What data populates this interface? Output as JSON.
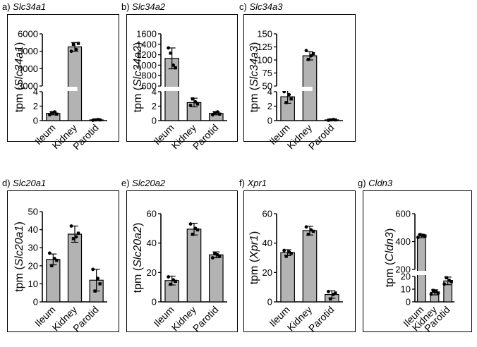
{
  "chart_data": [
    {
      "type": "bar",
      "panel_letter": "a)",
      "title": "Slc34a1",
      "ylabel_prefix": "tpm (",
      "ylabel_gene": "Slc34a1",
      "ylabel_suffix": ")",
      "categories": [
        "Ileum",
        "Kidney",
        "Parotid"
      ],
      "broken_axis": true,
      "lower": {
        "ylim": [
          0,
          4
        ],
        "ticks": [
          0,
          2,
          4
        ]
      },
      "upper": {
        "ylim": [
          3000,
          6000
        ],
        "ticks": [
          3000,
          4000,
          5000,
          6000
        ]
      },
      "values": [
        1.0,
        5250,
        0.1
      ],
      "errors": [
        0.2,
        250,
        0.05
      ],
      "points": [
        [
          0.8,
          1.1,
          1.2,
          0.9
        ],
        [
          5000,
          5400,
          5100,
          5450
        ],
        [
          0.05,
          0.1,
          0.15,
          0.1
        ]
      ]
    },
    {
      "type": "bar",
      "panel_letter": "b)",
      "title": "Slc34a2",
      "ylabel_prefix": "tpm (",
      "ylabel_gene": "Slc34a2",
      "ylabel_suffix": ")",
      "categories": [
        "Ileum",
        "Kidney",
        "Parotid"
      ],
      "broken_axis": true,
      "lower": {
        "ylim": [
          0,
          4
        ],
        "ticks": [
          0,
          2,
          4
        ]
      },
      "upper": {
        "ylim": [
          600,
          1600
        ],
        "ticks": [
          600,
          800,
          1000,
          1200,
          1400,
          1600
        ]
      },
      "values": [
        1130,
        2.5,
        1.0
      ],
      "errors": [
        200,
        0.6,
        0.2
      ],
      "points": [
        [
          1330,
          1230,
          1000,
          950
        ],
        [
          2.1,
          3.0,
          2.6,
          2.3
        ],
        [
          0.8,
          1.1,
          1.2,
          0.9
        ]
      ]
    },
    {
      "type": "bar",
      "panel_letter": "c)",
      "title": "Slc34a3",
      "ylabel_prefix": "tpm (",
      "ylabel_gene": "Slc34a3",
      "ylabel_suffix": ")",
      "categories": [
        "Ileum",
        "Kidney",
        "Parotid"
      ],
      "broken_axis": true,
      "lower": {
        "ylim": [
          0,
          4
        ],
        "ticks": [
          0,
          2,
          4
        ]
      },
      "upper": {
        "ylim": [
          50,
          150
        ],
        "ticks": [
          50,
          75,
          100,
          125,
          150
        ]
      },
      "values": [
        3.3,
        108,
        0.1
      ],
      "errors": [
        0.9,
        8,
        0.05
      ],
      "points": [
        [
          4.0,
          2.5,
          3.6,
          3.0
        ],
        [
          118,
          101,
          108,
          112
        ],
        [
          0.05,
          0.1,
          0.15,
          0.1
        ]
      ]
    },
    {
      "type": "bar",
      "panel_letter": "d)",
      "title": "Slc20a1",
      "ylabel_prefix": "tpm (",
      "ylabel_gene": "Slc20a1",
      "ylabel_suffix": ")",
      "categories": [
        "Ileum",
        "Kidney",
        "Parotid"
      ],
      "broken_axis": false,
      "ylim": [
        0,
        50
      ],
      "ticks": [
        0,
        10,
        20,
        30,
        40,
        50
      ],
      "values": [
        23.5,
        37.5,
        12.0
      ],
      "errors": [
        3,
        4.5,
        6
      ],
      "points": [
        [
          27,
          20,
          24,
          23
        ],
        [
          42,
          35,
          36,
          38
        ],
        [
          18,
          6,
          13,
          10
        ]
      ]
    },
    {
      "type": "bar",
      "panel_letter": "e)",
      "title": "Slc20a2",
      "ylabel_prefix": "tpm (",
      "ylabel_gene": "Slc20a2",
      "ylabel_suffix": ")",
      "categories": [
        "Ileum",
        "Kidney",
        "Parotid"
      ],
      "broken_axis": false,
      "ylim": [
        0,
        60
      ],
      "ticks": [
        0,
        20,
        40,
        60
      ],
      "values": [
        14.5,
        49.5,
        32.0
      ],
      "errors": [
        3,
        4,
        2
      ],
      "points": [
        [
          17,
          12,
          15,
          14
        ],
        [
          53,
          46,
          50,
          49
        ],
        [
          30,
          33,
          32,
          31
        ]
      ]
    },
    {
      "type": "bar",
      "panel_letter": "f)",
      "title": "Xpr1",
      "ylabel_prefix": "tpm (",
      "ylabel_gene": "Xpr1",
      "ylabel_suffix": ")",
      "categories": [
        "Ileum",
        "Kidney",
        "Parotid"
      ],
      "broken_axis": false,
      "ylim": [
        0,
        60
      ],
      "ticks": [
        0,
        20,
        40,
        60
      ],
      "values": [
        33.5,
        48.5,
        5.0
      ],
      "errors": [
        2,
        3,
        2.5
      ],
      "points": [
        [
          35,
          31,
          34,
          33
        ],
        [
          51,
          46,
          49,
          48
        ],
        [
          7,
          2,
          5,
          6
        ]
      ]
    },
    {
      "type": "bar",
      "panel_letter": "g)",
      "title": "Cldn3",
      "ylabel_prefix": "tpm (",
      "ylabel_gene": "Cldn3",
      "ylabel_suffix": ")",
      "categories": [
        "Ileum",
        "Kidney",
        "Parotid"
      ],
      "broken_axis": true,
      "lower": {
        "ylim": [
          0,
          20
        ],
        "ticks": [
          0,
          10,
          20
        ]
      },
      "upper": {
        "ylim": [
          200,
          600
        ],
        "ticks": [
          200,
          400,
          600
        ]
      },
      "values": [
        440,
        7.5,
        16.5
      ],
      "errors": [
        12,
        2,
        3
      ],
      "points": [
        [
          430,
          450,
          445,
          440
        ],
        [
          6,
          9,
          8,
          7
        ],
        [
          14,
          19,
          17,
          16
        ]
      ]
    }
  ]
}
